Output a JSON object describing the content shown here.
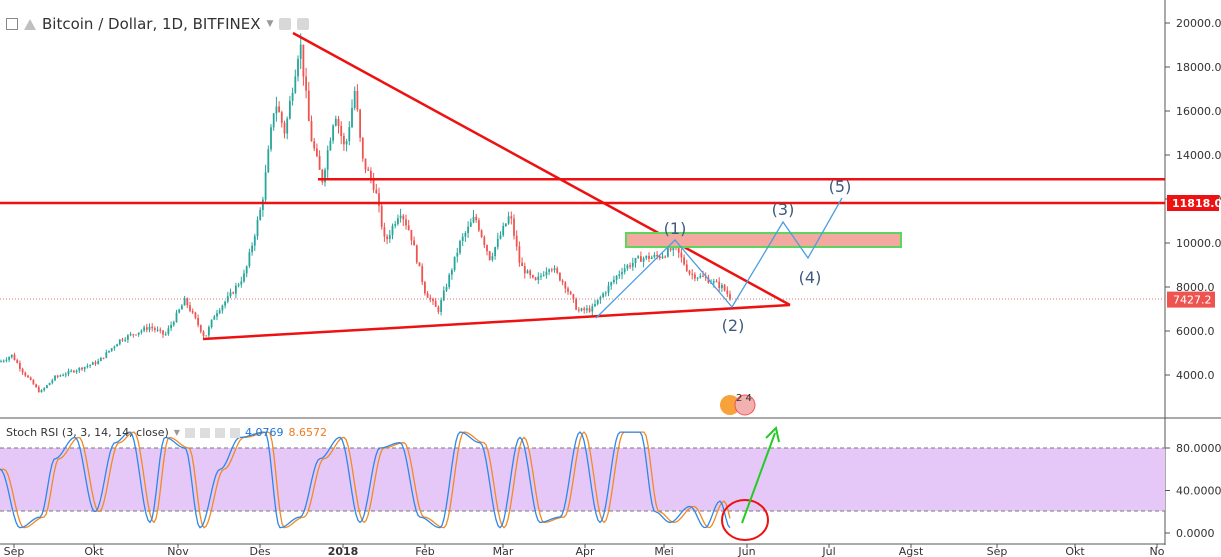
{
  "header": {
    "symbol_title": "Bitcoin / Dollar, 1D, BITFINEX"
  },
  "price_axis": {
    "ticks": [
      "20000.0",
      "18000.0",
      "16000.0",
      "14000.0",
      "12000.0",
      "10000.0",
      "8000.0",
      "6000.0",
      "4000.0"
    ],
    "badge_resistance": "11818.0",
    "badge_last": "7427.2"
  },
  "stoch_axis": {
    "ticks": [
      "80.0000",
      "40.0000",
      "0.0000"
    ]
  },
  "time_axis": {
    "labels": [
      "Sep",
      "Okt",
      "Nov",
      "Des",
      "2018",
      "Feb",
      "Mar",
      "Apr",
      "Mei",
      "Jun",
      "Jul",
      "Agst",
      "Sep",
      "Okt",
      "No"
    ]
  },
  "stoch": {
    "label": "Stoch RSI (3, 3, 14, 14, close)",
    "k_value": "4.0769",
    "d_value": "8.6572"
  },
  "annotations": {
    "wave_labels": [
      "(1)",
      "(2)",
      "(3)",
      "(4)",
      "(5)"
    ],
    "event_badge": "2 4"
  },
  "colors": {
    "up": "#26a69a",
    "down": "#ef5350",
    "trendline": "#ee1111",
    "zone_fill": "#f4a9a0",
    "zone_border": "#5cd65c",
    "wave_path": "#4a9fdf",
    "wave_text": "#3e5a7e",
    "stoch_k": "#2f87e6",
    "stoch_d": "#f08a24",
    "stoch_band": "#e6c8f8",
    "arrow": "#22cc22",
    "badge_red": "#ee1111"
  },
  "chart_data": {
    "type": "candlestick",
    "title": "Bitcoin / Dollar, 1D, BITFINEX",
    "ylim": [
      3000,
      20500
    ],
    "price_key_points": [
      {
        "date": "Sep",
        "price": 4500
      },
      {
        "date": "Okt",
        "price": 4800
      },
      {
        "date": "Nov",
        "price": 7000
      },
      {
        "date": "Des",
        "price": 11800
      },
      {
        "date": "Des",
        "price": 19300
      },
      {
        "date": "2018",
        "price": 13500
      },
      {
        "date": "Feb",
        "price": 6800
      },
      {
        "date": "Mar",
        "price": 11500
      },
      {
        "date": "Apr",
        "price": 6900
      },
      {
        "date": "Mei",
        "price": 9800
      },
      {
        "date": "Mei",
        "price": 7427
      }
    ],
    "last_price": 7427.2,
    "horizontal_resistance": [
      11818,
      12900
    ],
    "zone": [
      9800,
      10400
    ],
    "stoch_rsi": {
      "k": 4.0769,
      "d": 8.6572,
      "bands": [
        80,
        20
      ]
    }
  }
}
